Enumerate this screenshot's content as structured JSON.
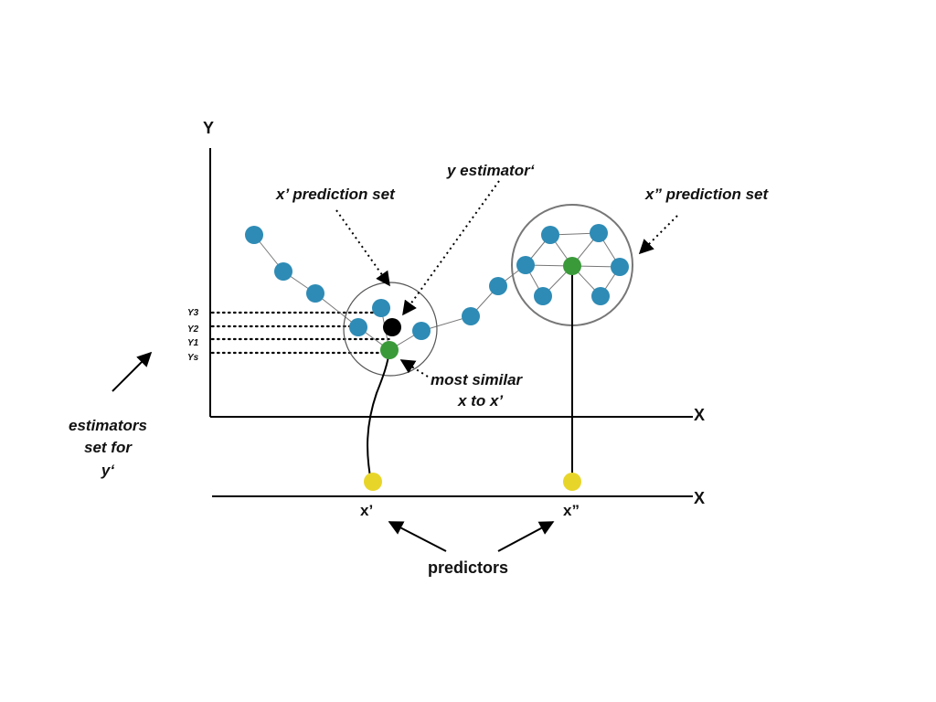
{
  "axes": {
    "y_axis_label": "Y",
    "x_axis_label_top": "X",
    "x_axis_label_bottom": "X"
  },
  "annotations": {
    "x1_prediction_set": "x’ prediction set",
    "x2_prediction_set": "x” prediction set",
    "y_estimator": "y estimator‘",
    "most_similar_line1": "most similar",
    "most_similar_line2": "x to x’",
    "estimators_line1": "estimators",
    "estimators_line2": "set for",
    "estimators_line3": "y‘",
    "predictors": "predictors"
  },
  "y_levels": [
    "Y3",
    "Y2",
    "Y1",
    "Ys"
  ],
  "predictor_labels": {
    "x1": "x’",
    "x2": "x”"
  },
  "colors": {
    "data_node": "#2e8bb5",
    "selected_node": "#3a9a3a",
    "estimator_node": "#000000",
    "predictor_node": "#e8d52a",
    "circle_stroke": "#777777",
    "line": "#000000"
  },
  "icons": {
    "data_node": "blue-dot",
    "selected_node": "green-dot",
    "estimator_node": "black-dot",
    "predictor_node": "yellow-dot"
  }
}
